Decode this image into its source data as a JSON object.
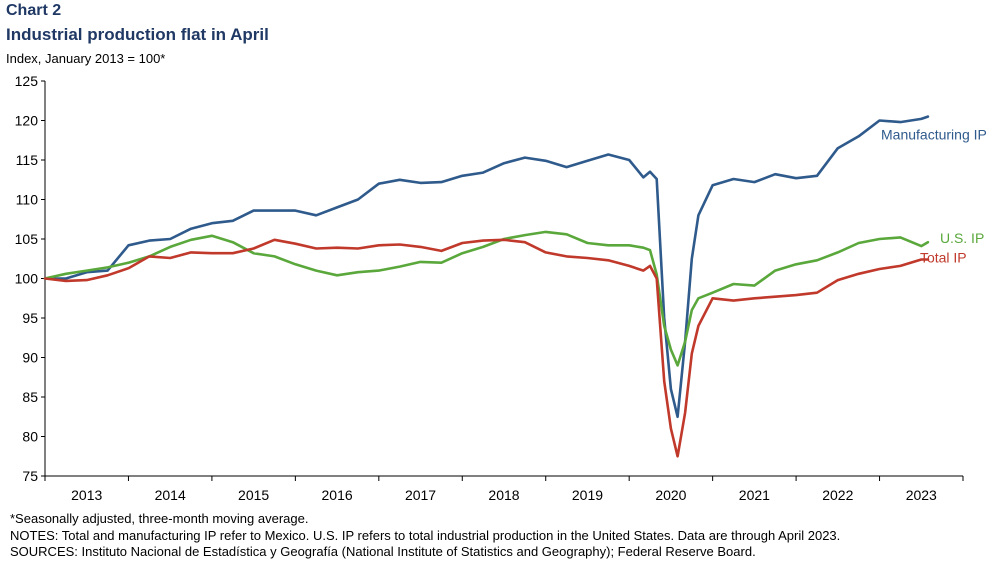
{
  "header": {
    "chart_label": "Chart 2",
    "title": "Industrial production flat in April",
    "subtitle": "Index, January 2013 = 100*"
  },
  "footer": {
    "note1": "*Seasonally adjusted, three-month moving average.",
    "note2": "NOTES: Total and manufacturing IP refer to Mexico. U.S. IP refers to total industrial production in the United States. Data are through April 2023.",
    "note3": "SOURCES: Instituto Nacional de Estadística y Geografía (National Institute of Statistics and Geography); Federal Reserve Board."
  },
  "chart_data": {
    "type": "line",
    "title": "Industrial production flat in April",
    "ylabel": "Index, January 2013 = 100*",
    "xlabel": "",
    "ylim": [
      75,
      125
    ],
    "yticks": [
      75,
      80,
      85,
      90,
      95,
      100,
      105,
      110,
      115,
      120,
      125
    ],
    "xlim": [
      2013.0,
      2024.0
    ],
    "xtick_labels": [
      "2013",
      "2014",
      "2015",
      "2016",
      "2017",
      "2018",
      "2019",
      "2020",
      "2021",
      "2022",
      "2023"
    ],
    "grid": false,
    "series": [
      {
        "name": "Manufacturing IP",
        "color": "#2f5a8c",
        "points": [
          [
            2013.0,
            100.0
          ],
          [
            2013.25,
            100.0
          ],
          [
            2013.5,
            100.8
          ],
          [
            2013.75,
            101.0
          ],
          [
            2014.0,
            104.2
          ],
          [
            2014.25,
            104.8
          ],
          [
            2014.5,
            105.0
          ],
          [
            2014.75,
            106.3
          ],
          [
            2015.0,
            107.0
          ],
          [
            2015.25,
            107.3
          ],
          [
            2015.5,
            108.6
          ],
          [
            2015.75,
            108.6
          ],
          [
            2016.0,
            108.6
          ],
          [
            2016.25,
            108.0
          ],
          [
            2016.5,
            109.0
          ],
          [
            2016.75,
            110.0
          ],
          [
            2017.0,
            112.0
          ],
          [
            2017.25,
            112.5
          ],
          [
            2017.5,
            112.1
          ],
          [
            2017.75,
            112.2
          ],
          [
            2018.0,
            113.0
          ],
          [
            2018.25,
            113.4
          ],
          [
            2018.5,
            114.6
          ],
          [
            2018.75,
            115.3
          ],
          [
            2019.0,
            114.9
          ],
          [
            2019.25,
            114.1
          ],
          [
            2019.5,
            114.9
          ],
          [
            2019.75,
            115.7
          ],
          [
            2020.0,
            115.0
          ],
          [
            2020.17,
            112.8
          ],
          [
            2020.25,
            113.5
          ],
          [
            2020.33,
            112.6
          ],
          [
            2020.42,
            95.0
          ],
          [
            2020.5,
            86.0
          ],
          [
            2020.58,
            82.5
          ],
          [
            2020.67,
            92.0
          ],
          [
            2020.75,
            102.5
          ],
          [
            2020.83,
            108.0
          ],
          [
            2021.0,
            111.8
          ],
          [
            2021.25,
            112.6
          ],
          [
            2021.5,
            112.2
          ],
          [
            2021.75,
            113.2
          ],
          [
            2022.0,
            112.7
          ],
          [
            2022.25,
            113.0
          ],
          [
            2022.5,
            116.5
          ],
          [
            2022.75,
            118.0
          ],
          [
            2023.0,
            120.0
          ],
          [
            2023.25,
            119.8
          ],
          [
            2023.5,
            120.2
          ],
          [
            2023.58,
            120.5
          ]
        ]
      },
      {
        "name": "U.S. IP",
        "color": "#5aa83c",
        "points": [
          [
            2013.0,
            100.0
          ],
          [
            2013.25,
            100.6
          ],
          [
            2013.5,
            101.0
          ],
          [
            2013.75,
            101.4
          ],
          [
            2014.0,
            102.0
          ],
          [
            2014.25,
            102.8
          ],
          [
            2014.5,
            104.0
          ],
          [
            2014.75,
            104.9
          ],
          [
            2015.0,
            105.4
          ],
          [
            2015.25,
            104.6
          ],
          [
            2015.5,
            103.2
          ],
          [
            2015.75,
            102.8
          ],
          [
            2016.0,
            101.8
          ],
          [
            2016.25,
            101.0
          ],
          [
            2016.5,
            100.4
          ],
          [
            2016.75,
            100.8
          ],
          [
            2017.0,
            101.0
          ],
          [
            2017.25,
            101.5
          ],
          [
            2017.5,
            102.1
          ],
          [
            2017.75,
            102.0
          ],
          [
            2018.0,
            103.2
          ],
          [
            2018.25,
            104.0
          ],
          [
            2018.5,
            105.0
          ],
          [
            2018.75,
            105.5
          ],
          [
            2019.0,
            105.9
          ],
          [
            2019.25,
            105.6
          ],
          [
            2019.5,
            104.5
          ],
          [
            2019.75,
            104.2
          ],
          [
            2020.0,
            104.2
          ],
          [
            2020.17,
            103.9
          ],
          [
            2020.25,
            103.6
          ],
          [
            2020.33,
            100.5
          ],
          [
            2020.42,
            94.0
          ],
          [
            2020.5,
            91.0
          ],
          [
            2020.58,
            89.0
          ],
          [
            2020.67,
            92.0
          ],
          [
            2020.75,
            96.0
          ],
          [
            2020.83,
            97.5
          ],
          [
            2021.0,
            98.2
          ],
          [
            2021.25,
            99.3
          ],
          [
            2021.5,
            99.1
          ],
          [
            2021.75,
            101.0
          ],
          [
            2022.0,
            101.8
          ],
          [
            2022.25,
            102.3
          ],
          [
            2022.5,
            103.3
          ],
          [
            2022.75,
            104.5
          ],
          [
            2023.0,
            105.0
          ],
          [
            2023.25,
            105.2
          ],
          [
            2023.5,
            104.1
          ],
          [
            2023.58,
            104.6
          ]
        ]
      },
      {
        "name": "Total IP",
        "color": "#c0392b",
        "points": [
          [
            2013.0,
            100.0
          ],
          [
            2013.25,
            99.7
          ],
          [
            2013.5,
            99.8
          ],
          [
            2013.75,
            100.4
          ],
          [
            2014.0,
            101.3
          ],
          [
            2014.25,
            102.8
          ],
          [
            2014.5,
            102.6
          ],
          [
            2014.75,
            103.3
          ],
          [
            2015.0,
            103.2
          ],
          [
            2015.25,
            103.2
          ],
          [
            2015.5,
            103.8
          ],
          [
            2015.75,
            104.9
          ],
          [
            2016.0,
            104.4
          ],
          [
            2016.25,
            103.8
          ],
          [
            2016.5,
            103.9
          ],
          [
            2016.75,
            103.8
          ],
          [
            2017.0,
            104.2
          ],
          [
            2017.25,
            104.3
          ],
          [
            2017.5,
            104.0
          ],
          [
            2017.75,
            103.5
          ],
          [
            2018.0,
            104.5
          ],
          [
            2018.25,
            104.8
          ],
          [
            2018.5,
            104.9
          ],
          [
            2018.75,
            104.6
          ],
          [
            2019.0,
            103.3
          ],
          [
            2019.25,
            102.8
          ],
          [
            2019.5,
            102.6
          ],
          [
            2019.75,
            102.3
          ],
          [
            2020.0,
            101.6
          ],
          [
            2020.17,
            101.0
          ],
          [
            2020.25,
            101.6
          ],
          [
            2020.33,
            100.0
          ],
          [
            2020.42,
            87.0
          ],
          [
            2020.5,
            81.0
          ],
          [
            2020.58,
            77.5
          ],
          [
            2020.67,
            83.0
          ],
          [
            2020.75,
            90.5
          ],
          [
            2020.83,
            94.0
          ],
          [
            2021.0,
            97.5
          ],
          [
            2021.25,
            97.2
          ],
          [
            2021.5,
            97.5
          ],
          [
            2021.75,
            97.7
          ],
          [
            2022.0,
            97.9
          ],
          [
            2022.25,
            98.2
          ],
          [
            2022.5,
            99.8
          ],
          [
            2022.75,
            100.6
          ],
          [
            2023.0,
            101.2
          ],
          [
            2023.25,
            101.6
          ],
          [
            2023.5,
            102.4
          ],
          [
            2023.58,
            102.4
          ]
        ]
      }
    ],
    "annotations": [
      {
        "series": "Manufacturing IP",
        "text": "Manufacturing  IP"
      },
      {
        "series": "U.S. IP",
        "text": "U.S. IP"
      },
      {
        "series": "Total IP",
        "text": "Total IP"
      }
    ]
  }
}
